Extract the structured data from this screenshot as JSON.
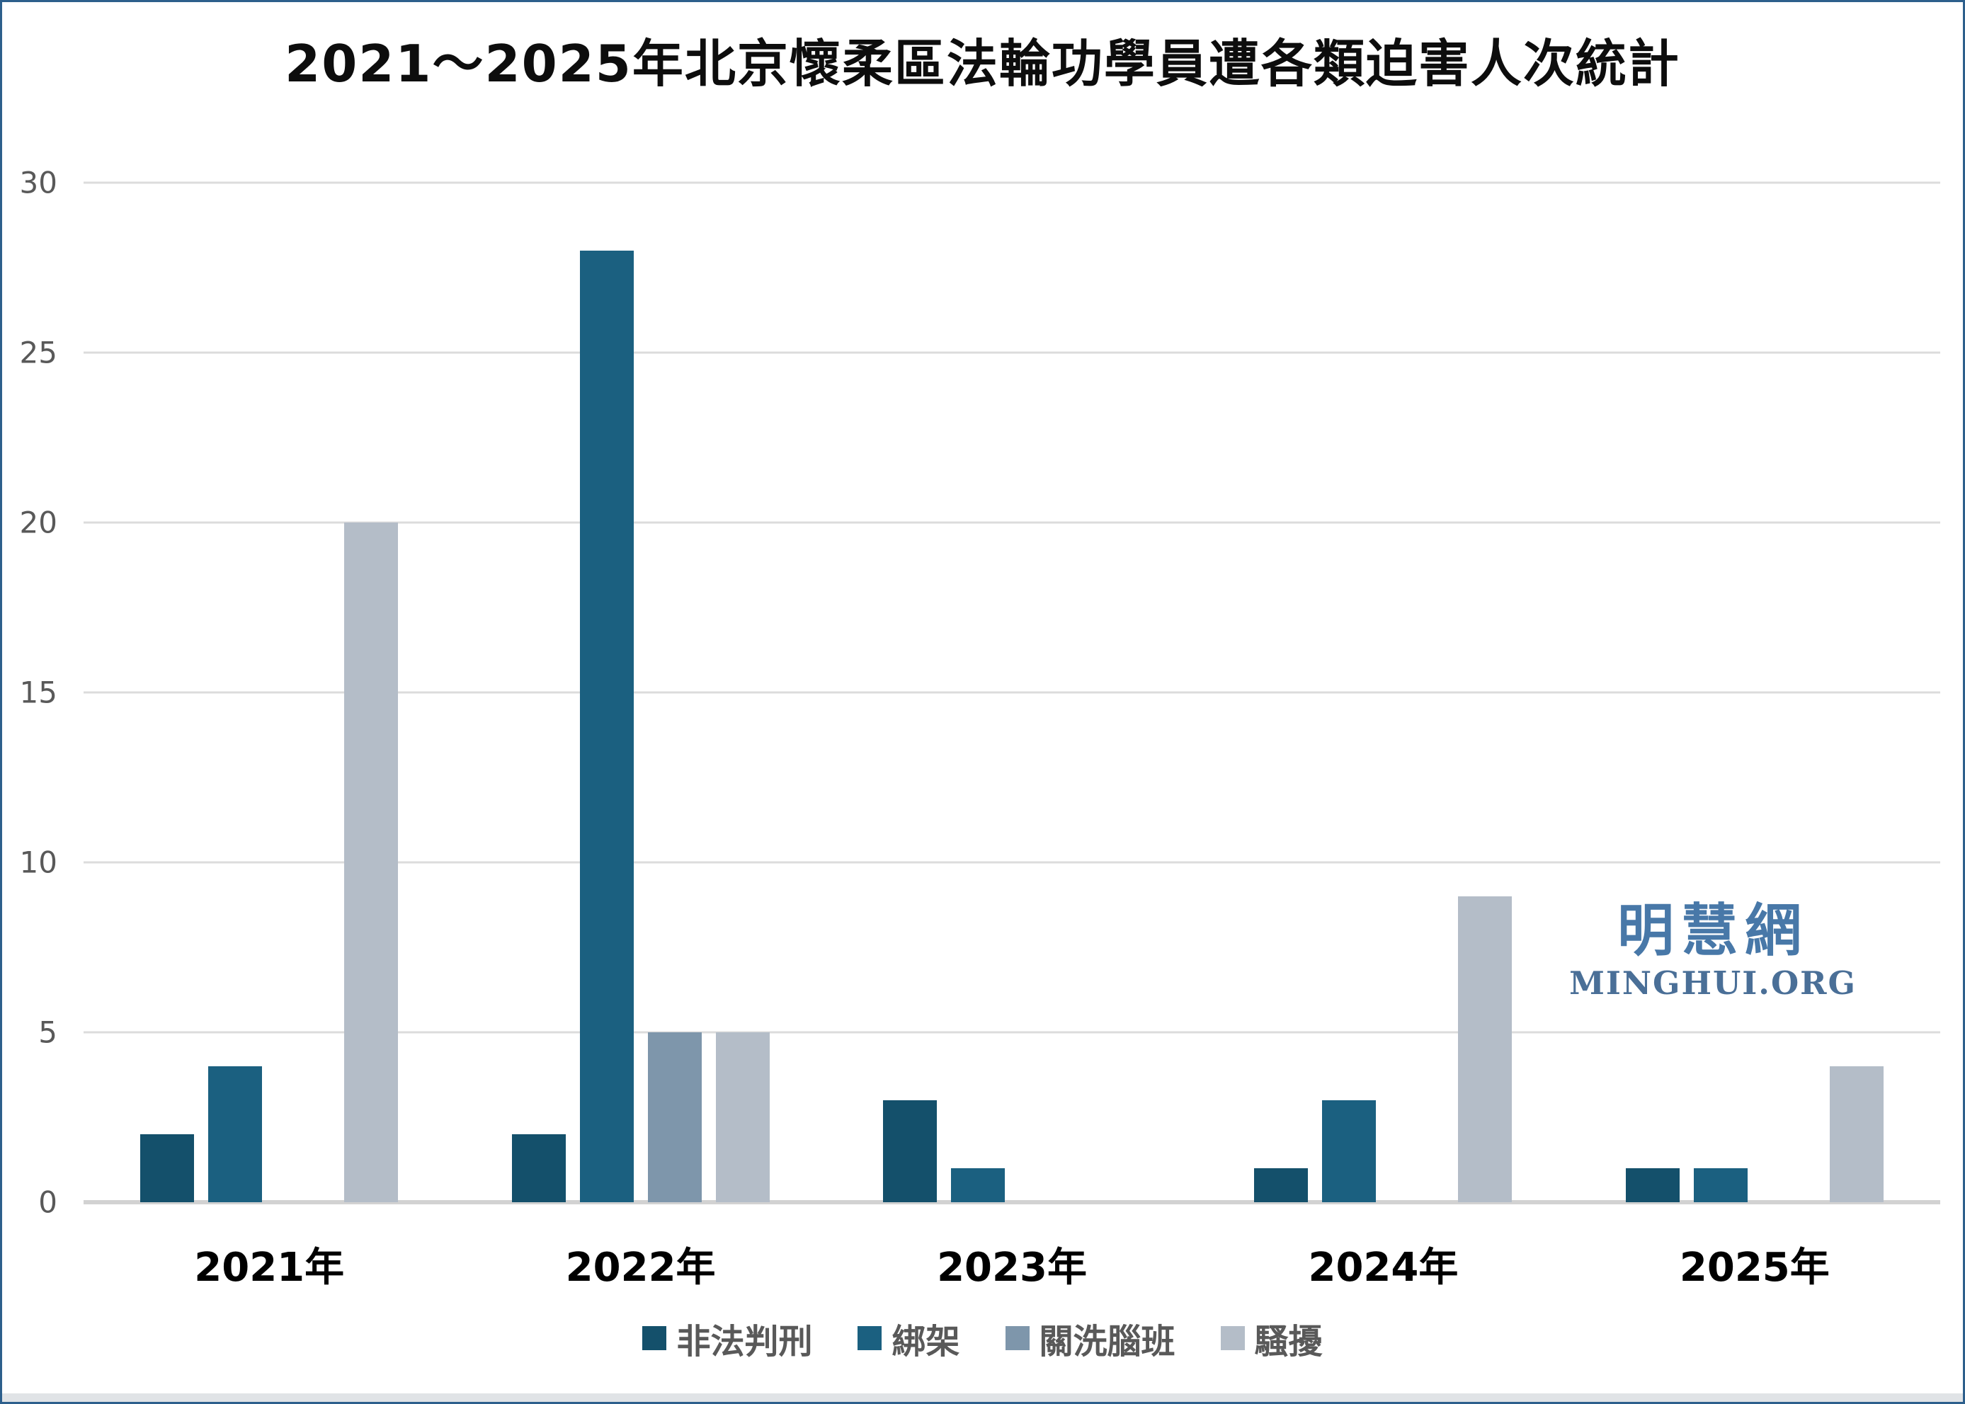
{
  "title": "2021～2025年北京懷柔區法輪功學員遭各類迫害人次統計",
  "watermark": {
    "cjk": "明慧網",
    "latin": "MINGHUI.ORG"
  },
  "colors": {
    "frame_border": "#2d5f8c",
    "gridline": "#dcdcdc",
    "axis_line": "#d2d2d2",
    "ytick_text": "#595959",
    "xtick_text": "#000000",
    "legend_text": "#595959",
    "watermark_cjk": "#4878a8",
    "watermark_latin": "#4a6f97"
  },
  "chart_data": {
    "type": "bar",
    "title": "2021～2025年北京懷柔區法輪功學員遭各類迫害人次統計",
    "categories": [
      "2021年",
      "2022年",
      "2023年",
      "2024年",
      "2025年"
    ],
    "series": [
      {
        "name": "非法判刑",
        "color": "#14506b",
        "values": [
          2,
          2,
          3,
          1,
          1
        ]
      },
      {
        "name": "綁架",
        "color": "#1b6080",
        "values": [
          4,
          28,
          1,
          3,
          1
        ]
      },
      {
        "name": "關洗腦班",
        "color": "#7e96ab",
        "values": [
          0,
          5,
          0,
          0,
          0
        ]
      },
      {
        "name": "騷擾",
        "color": "#b4bdc8",
        "values": [
          20,
          5,
          0,
          9,
          4
        ]
      }
    ],
    "xlabel": "",
    "ylabel": "",
    "ylim": [
      0,
      30
    ],
    "yticks": [
      0,
      5,
      10,
      15,
      20,
      25,
      30
    ],
    "grid": true,
    "legend_position": "bottom"
  }
}
